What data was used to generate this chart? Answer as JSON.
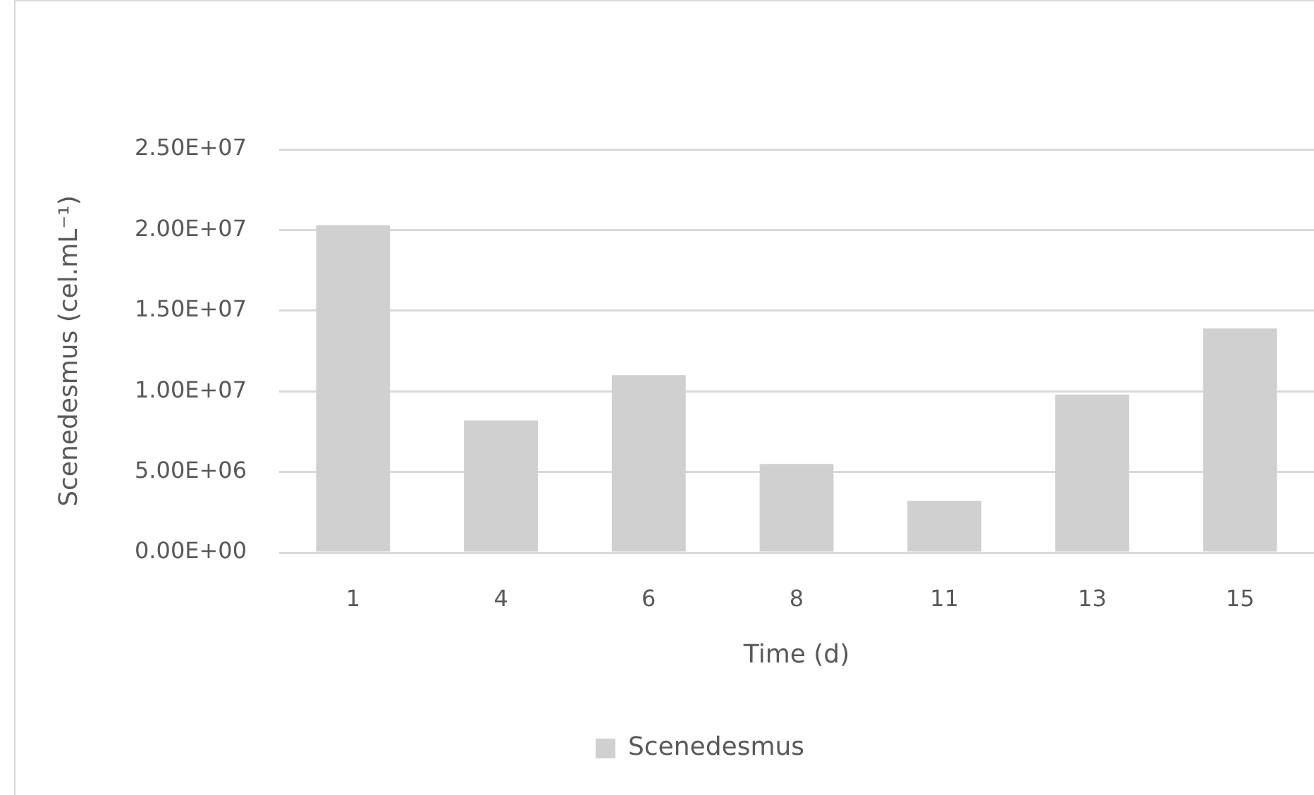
{
  "chart_data": {
    "type": "bar",
    "xlabel": "Time (d)",
    "ylabel": "Scenedesmus (cel.mL⁻¹)",
    "categories": [
      "1",
      "4",
      "6",
      "8",
      "11",
      "13",
      "15"
    ],
    "series": [
      {
        "name": "Scenedesmus",
        "color": "#d0d0d0",
        "values": [
          20300000,
          8200000,
          11000000,
          5500000,
          3200000,
          9800000,
          13900000
        ]
      }
    ],
    "ylim": [
      0,
      25000000
    ],
    "yticks": [
      {
        "value": 0,
        "label": "0.00E+00"
      },
      {
        "value": 5000000,
        "label": "5.00E+06"
      },
      {
        "value": 10000000,
        "label": "1.00E+07"
      },
      {
        "value": 15000000,
        "label": "1.50E+07"
      },
      {
        "value": 20000000,
        "label": "2.00E+07"
      },
      {
        "value": 25000000,
        "label": "2.50E+07"
      }
    ],
    "grid": "y",
    "legend": "bottom"
  }
}
